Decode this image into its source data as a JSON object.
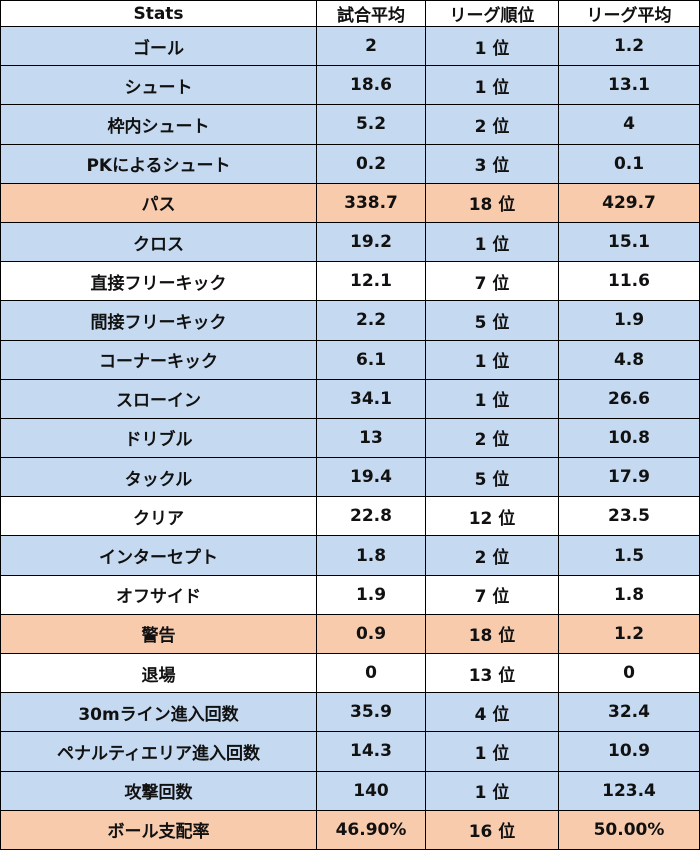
{
  "headers": [
    "Stats",
    "試合平均",
    "リーグ順位",
    "リーグ平均"
  ],
  "colors": {
    "blue": "#c5d9f1",
    "orange": "#f8cbad",
    "white": "#ffffff"
  },
  "rows": [
    {
      "stat": "ゴール",
      "avg": "2",
      "rank": "1 位",
      "league_avg": "1.2",
      "color": "blue"
    },
    {
      "stat": "シュート",
      "avg": "18.6",
      "rank": "1 位",
      "league_avg": "13.1",
      "color": "blue"
    },
    {
      "stat": "枠内シュート",
      "avg": "5.2",
      "rank": "2 位",
      "league_avg": "4",
      "color": "blue"
    },
    {
      "stat": "PKによるシュート",
      "avg": "0.2",
      "rank": "3 位",
      "league_avg": "0.1",
      "color": "blue"
    },
    {
      "stat": "パス",
      "avg": "338.7",
      "rank": "18 位",
      "league_avg": "429.7",
      "color": "orange"
    },
    {
      "stat": "クロス",
      "avg": "19.2",
      "rank": "1 位",
      "league_avg": "15.1",
      "color": "blue"
    },
    {
      "stat": "直接フリーキック",
      "avg": "12.1",
      "rank": "7 位",
      "league_avg": "11.6",
      "color": "white"
    },
    {
      "stat": "間接フリーキック",
      "avg": "2.2",
      "rank": "5 位",
      "league_avg": "1.9",
      "color": "blue"
    },
    {
      "stat": "コーナーキック",
      "avg": "6.1",
      "rank": "1 位",
      "league_avg": "4.8",
      "color": "blue"
    },
    {
      "stat": "スローイン",
      "avg": "34.1",
      "rank": "1 位",
      "league_avg": "26.6",
      "color": "blue"
    },
    {
      "stat": "ドリブル",
      "avg": "13",
      "rank": "2 位",
      "league_avg": "10.8",
      "color": "blue"
    },
    {
      "stat": "タックル",
      "avg": "19.4",
      "rank": "5 位",
      "league_avg": "17.9",
      "color": "blue"
    },
    {
      "stat": "クリア",
      "avg": "22.8",
      "rank": "12 位",
      "league_avg": "23.5",
      "color": "white"
    },
    {
      "stat": "インターセプト",
      "avg": "1.8",
      "rank": "2 位",
      "league_avg": "1.5",
      "color": "blue"
    },
    {
      "stat": "オフサイド",
      "avg": "1.9",
      "rank": "7 位",
      "league_avg": "1.8",
      "color": "white"
    },
    {
      "stat": "警告",
      "avg": "0.9",
      "rank": "18 位",
      "league_avg": "1.2",
      "color": "orange"
    },
    {
      "stat": "退場",
      "avg": "0",
      "rank": "13 位",
      "league_avg": "0",
      "color": "white"
    },
    {
      "stat": "30mライン進入回数",
      "avg": "35.9",
      "rank": "4 位",
      "league_avg": "32.4",
      "color": "blue"
    },
    {
      "stat": "ペナルティエリア進入回数",
      "avg": "14.3",
      "rank": "1 位",
      "league_avg": "10.9",
      "color": "blue"
    },
    {
      "stat": "攻撃回数",
      "avg": "140",
      "rank": "1 位",
      "league_avg": "123.4",
      "color": "blue"
    },
    {
      "stat": "ボール支配率",
      "avg": "46.90%",
      "rank": "16 位",
      "league_avg": "50.00%",
      "color": "orange"
    }
  ]
}
